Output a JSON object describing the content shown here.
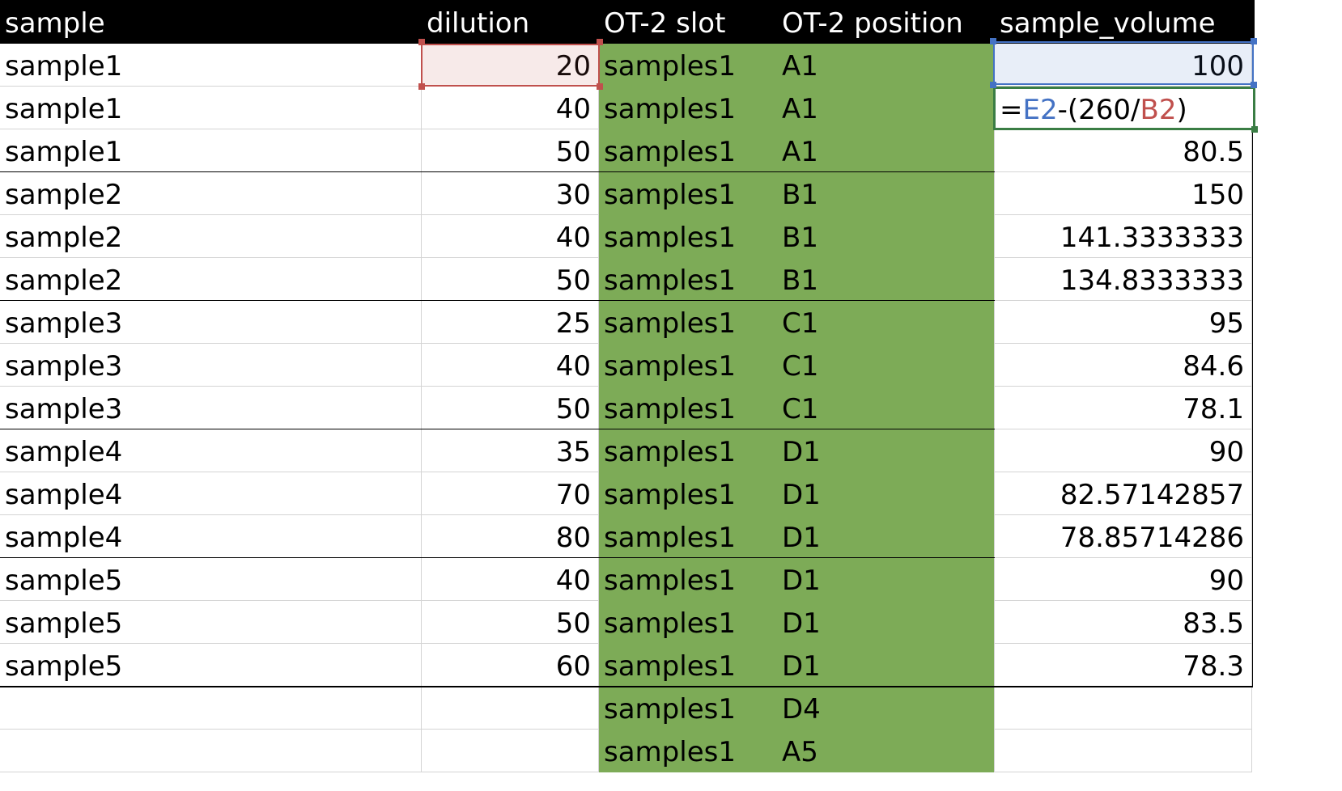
{
  "headers": [
    "sample",
    "dilution",
    "OT-2 slot",
    "OT-2 position",
    "sample_volume"
  ],
  "rows": [
    {
      "sample": "sample1",
      "dilution": "20",
      "slot": "samples1",
      "position": "A1",
      "volume": "100"
    },
    {
      "sample": "sample1",
      "dilution": "40",
      "slot": "samples1",
      "position": "A1",
      "volume": ""
    },
    {
      "sample": "sample1",
      "dilution": "50",
      "slot": "samples1",
      "position": "A1",
      "volume": "80.5"
    },
    {
      "sample": "sample2",
      "dilution": "30",
      "slot": "samples1",
      "position": "B1",
      "volume": "150"
    },
    {
      "sample": "sample2",
      "dilution": "40",
      "slot": "samples1",
      "position": "B1",
      "volume": "141.3333333"
    },
    {
      "sample": "sample2",
      "dilution": "50",
      "slot": "samples1",
      "position": "B1",
      "volume": "134.8333333"
    },
    {
      "sample": "sample3",
      "dilution": "25",
      "slot": "samples1",
      "position": "C1",
      "volume": "95"
    },
    {
      "sample": "sample3",
      "dilution": "40",
      "slot": "samples1",
      "position": "C1",
      "volume": "84.6"
    },
    {
      "sample": "sample3",
      "dilution": "50",
      "slot": "samples1",
      "position": "C1",
      "volume": "78.1"
    },
    {
      "sample": "sample4",
      "dilution": "35",
      "slot": "samples1",
      "position": "D1",
      "volume": "90"
    },
    {
      "sample": "sample4",
      "dilution": "70",
      "slot": "samples1",
      "position": "D1",
      "volume": "82.57142857"
    },
    {
      "sample": "sample4",
      "dilution": "80",
      "slot": "samples1",
      "position": "D1",
      "volume": "78.85714286"
    },
    {
      "sample": "sample5",
      "dilution": "40",
      "slot": "samples1",
      "position": "D1",
      "volume": "90"
    },
    {
      "sample": "sample5",
      "dilution": "50",
      "slot": "samples1",
      "position": "D1",
      "volume": "83.5"
    },
    {
      "sample": "sample5",
      "dilution": "60",
      "slot": "samples1",
      "position": "D1",
      "volume": "78.3"
    },
    {
      "sample": "",
      "dilution": "",
      "slot": "samples1",
      "position": "D4",
      "volume": ""
    },
    {
      "sample": "",
      "dilution": "",
      "slot": "samples1",
      "position": "A5",
      "volume": ""
    }
  ],
  "formula_edit": {
    "equals": "=",
    "ref1": "E2",
    "op": "-(260/",
    "ref2": "B2",
    "close": ")"
  },
  "colors": {
    "header_bg": "#000000",
    "green_fill": "#7dab57",
    "ref_blue": "#4472c4",
    "ref_red": "#c0504d",
    "edit_border": "#3a7d44"
  }
}
